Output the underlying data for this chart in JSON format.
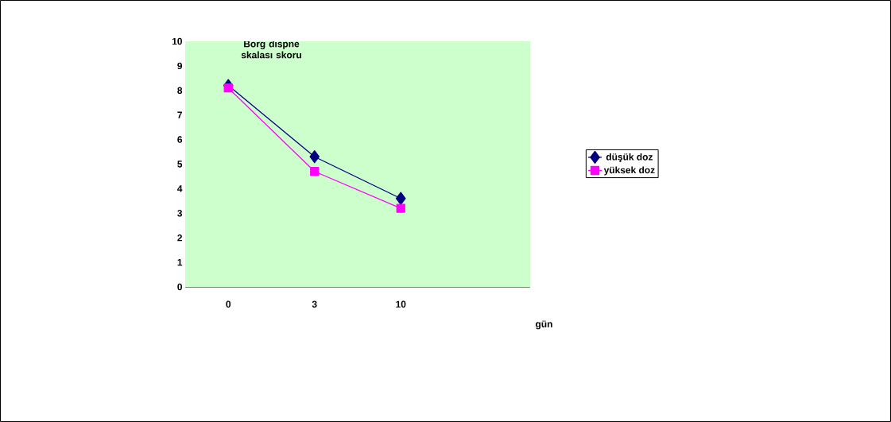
{
  "chart_data": {
    "type": "line",
    "ylabel": "Borg dispne skalası skoru",
    "xlabel": "gün",
    "categories": [
      "0",
      "3",
      "10",
      null
    ],
    "series": [
      {
        "name": "düşük doz",
        "color": "#000080",
        "marker": "diamond",
        "values": [
          8.2,
          5.3,
          3.6,
          null
        ]
      },
      {
        "name": "yüksek doz",
        "color": "#ff00ff",
        "marker": "square",
        "values": [
          8.1,
          4.7,
          3.2,
          null
        ]
      }
    ],
    "ylim": [
      0,
      10
    ],
    "yticks": [
      0,
      1,
      2,
      3,
      4,
      5,
      6,
      7,
      8,
      9,
      10
    ],
    "grid": false,
    "legend": "right"
  }
}
